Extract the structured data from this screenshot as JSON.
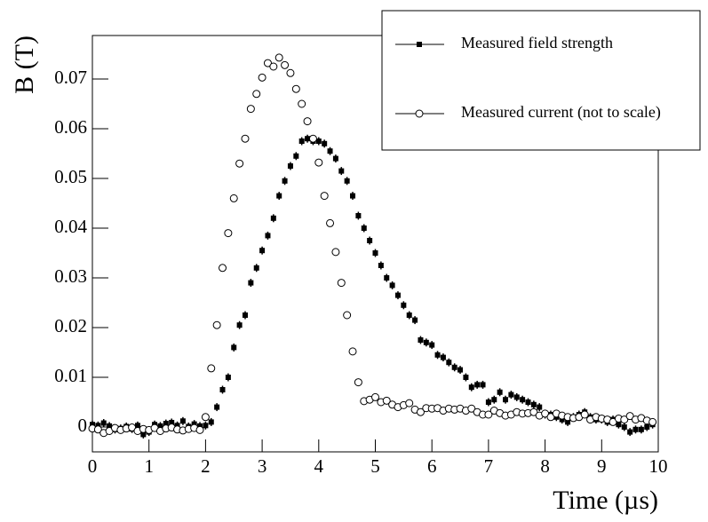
{
  "chart_data": {
    "type": "scatter",
    "xlabel": "Time (µs)",
    "ylabel": "B (T)",
    "xlim": [
      0,
      10
    ],
    "ylim": [
      -0.005,
      0.07875
    ],
    "xticks": [
      0,
      1,
      2,
      3,
      4,
      5,
      6,
      7,
      8,
      9,
      10
    ],
    "yticks": [
      0,
      0.01,
      0.02,
      0.03,
      0.04,
      0.05,
      0.06,
      0.07
    ],
    "legend": "upper right",
    "x": [
      0,
      0.1,
      0.2,
      0.3,
      0.4,
      0.5,
      0.6,
      0.7,
      0.8,
      0.9,
      1,
      1.1,
      1.2,
      1.3,
      1.4,
      1.5,
      1.6,
      1.7,
      1.8,
      1.9,
      2,
      2.1,
      2.2,
      2.3,
      2.4,
      2.5,
      2.6,
      2.7,
      2.8,
      2.9,
      3,
      3.1,
      3.2,
      3.3,
      3.4,
      3.5,
      3.6,
      3.7,
      3.8,
      3.9,
      4,
      4.1,
      4.2,
      4.3,
      4.4,
      4.5,
      4.6,
      4.7,
      4.8,
      4.9,
      5,
      5.1,
      5.2,
      5.3,
      5.4,
      5.5,
      5.6,
      5.7,
      5.8,
      5.9,
      6,
      6.1,
      6.2,
      6.3,
      6.4,
      6.5,
      6.6,
      6.7,
      6.8,
      6.9,
      7,
      7.1,
      7.2,
      7.3,
      7.4,
      7.5,
      7.6,
      7.7,
      7.8,
      7.9,
      8,
      8.1,
      8.2,
      8.3,
      8.4,
      8.5,
      8.6,
      8.7,
      8.8,
      8.9,
      9,
      9.1,
      9.2,
      9.3,
      9.4,
      9.5,
      9.6,
      9.7,
      9.8,
      9.9
    ],
    "series": [
      {
        "name": "Measured field strength",
        "color": "#000000",
        "marker": "square",
        "values": [
          0.0005,
          0.0003,
          0.0008,
          0.0002,
          -0.0005,
          -0.0003,
          0.0001,
          -0.0004,
          0.0003,
          -0.0015,
          -0.001,
          0.0005,
          0.0002,
          0.0007,
          0.0009,
          0.0003,
          0.0012,
          0.0001,
          0.0006,
          0.0002,
          0.0003,
          0.001,
          0.004,
          0.0075,
          0.01,
          0.016,
          0.0205,
          0.0225,
          0.029,
          0.032,
          0.0355,
          0.0385,
          0.042,
          0.0465,
          0.0495,
          0.0525,
          0.0545,
          0.0575,
          0.058,
          0.0575,
          0.0575,
          0.057,
          0.0555,
          0.054,
          0.0515,
          0.0495,
          0.0465,
          0.0425,
          0.04,
          0.0375,
          0.035,
          0.0325,
          0.03,
          0.0285,
          0.0265,
          0.0245,
          0.0225,
          0.0215,
          0.0175,
          0.017,
          0.0165,
          0.0145,
          0.014,
          0.013,
          0.012,
          0.0115,
          0.01,
          0.008,
          0.0085,
          0.0085,
          0.005,
          0.0055,
          0.007,
          0.0055,
          0.0065,
          0.006,
          0.0055,
          0.005,
          0.0045,
          0.004,
          0.0025,
          0.0025,
          0.002,
          0.0015,
          0.001,
          0.002,
          0.0025,
          0.003,
          0.002,
          0.0015,
          0.0015,
          0.001,
          0.0015,
          0.0005,
          0,
          -0.001,
          -0.0005,
          -0.0005,
          0,
          0.0005
        ],
        "errors": [
          0.0008,
          0.0008,
          0.0008,
          0.0008,
          0.0008,
          0.0008,
          0.0008,
          0.0008,
          0.0008,
          0.0008,
          0.0008,
          0.0008,
          0.0008,
          0.0008,
          0.0008,
          0.0008,
          0.0008,
          0.0008,
          0.0008,
          0.0008,
          0.0008,
          0.0008,
          0.0008,
          0.0008,
          0.0008,
          0.0008,
          0.0008,
          0.0008,
          0.0008,
          0.0008,
          0.0008,
          0.0008,
          0.0008,
          0.0008,
          0.0008,
          0.0008,
          0.0008,
          0.0008,
          0.0008,
          0.0008,
          0.0008,
          0.0008,
          0.0008,
          0.0008,
          0.0008,
          0.0008,
          0.0008,
          0.0008,
          0.0008,
          0.0008,
          0.0008,
          0.0008,
          0.0008,
          0.0008,
          0.0008,
          0.0008,
          0.0008,
          0.0008,
          0.0008,
          0.0008,
          0.0008,
          0.0008,
          0.0008,
          0.0008,
          0.0008,
          0.0008,
          0.0008,
          0.0008,
          0.0008,
          0.0008,
          0.0008,
          0.0008,
          0.0008,
          0.0008,
          0.0008,
          0.0008,
          0.0008,
          0.0008,
          0.0008,
          0.0008,
          0.0008,
          0.0008,
          0.0008,
          0.0008,
          0.0008,
          0.0008,
          0.0008,
          0.0008,
          0.0008,
          0.0008,
          0.0008,
          0.0008,
          0.0008,
          0.0008,
          0.0008,
          0.0008,
          0.0008,
          0.0008,
          0.0008,
          0.0008
        ]
      },
      {
        "name": "Measured current (not to scale)",
        "color": "#000000",
        "marker": "circle",
        "values": [
          -0.0003,
          -0.0005,
          -0.0012,
          -0.0008,
          -0.0002,
          -0.0006,
          -0.0003,
          -0.0001,
          -0.0008,
          -0.0004,
          -0.0006,
          -0.0002,
          -0.0008,
          -0.0003,
          -0.0001,
          -0.0005,
          -0.0007,
          -0.0004,
          -0.0002,
          -0.0006,
          0.002,
          0.0118,
          0.0205,
          0.032,
          0.039,
          0.046,
          0.053,
          0.058,
          0.064,
          0.067,
          0.0703,
          0.0732,
          0.0725,
          0.0743,
          0.0728,
          0.0712,
          0.068,
          0.065,
          0.0615,
          0.058,
          0.0532,
          0.0465,
          0.041,
          0.0352,
          0.029,
          0.0225,
          0.0152,
          0.009,
          0.0052,
          0.0055,
          0.006,
          0.005,
          0.0053,
          0.0045,
          0.004,
          0.0044,
          0.0048,
          0.0035,
          0.003,
          0.0038,
          0.0037,
          0.0038,
          0.0033,
          0.0037,
          0.0035,
          0.0037,
          0.0033,
          0.0037,
          0.003,
          0.0025,
          0.0025,
          0.0033,
          0.0028,
          0.0023,
          0.0025,
          0.003,
          0.0027,
          0.0028,
          0.003,
          0.0023,
          0.0027,
          0.002,
          0.0027,
          0.0023,
          0.002,
          0.0018,
          0.002,
          0.0025,
          0.0015,
          0.002,
          0.0017,
          0.0015,
          0.001,
          0.0017,
          0.0015,
          0.0022,
          0.0015,
          0.0018,
          0.0013,
          0.001
        ]
      }
    ]
  }
}
